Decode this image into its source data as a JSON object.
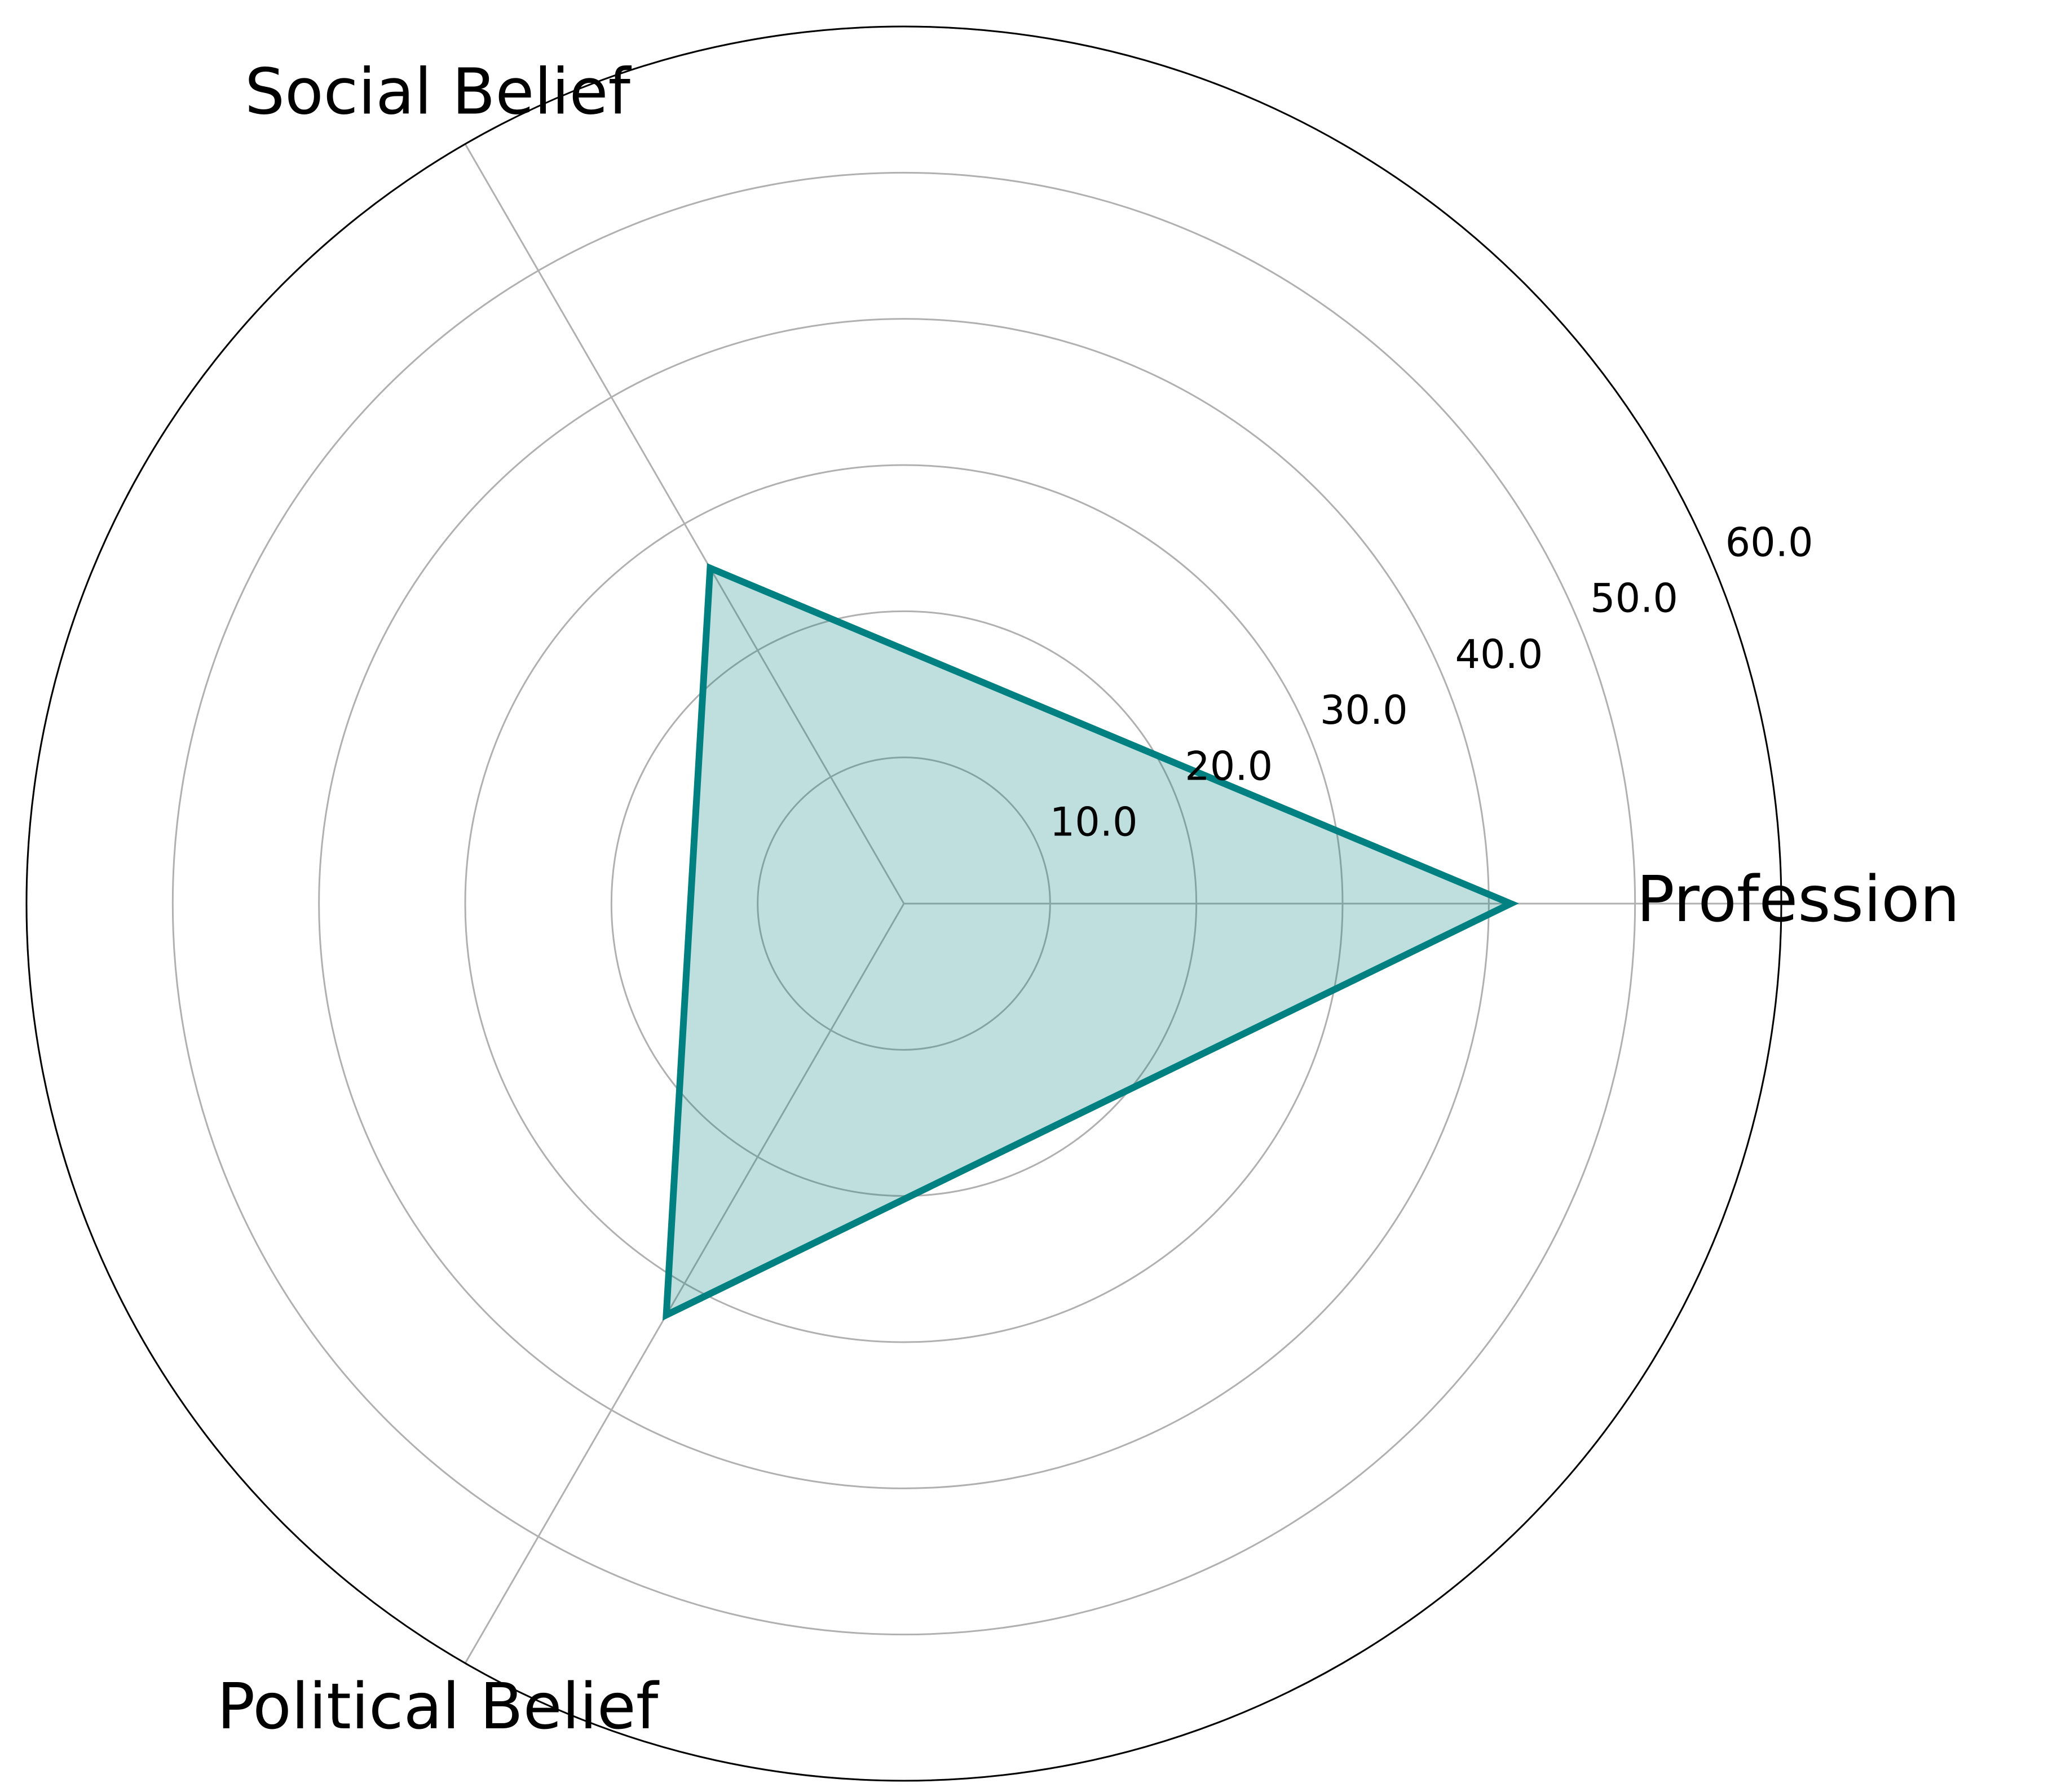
{
  "chart_data": {
    "type": "radar",
    "categories": [
      "Profession",
      "Social Belief",
      "Political Belief"
    ],
    "values": [
      41.5,
      26.5,
      32.5
    ],
    "color": "#008080",
    "ylim": [
      0,
      60
    ],
    "yticks": [
      {
        "value": 10,
        "label": "10.0"
      },
      {
        "value": 20,
        "label": "20.0"
      },
      {
        "value": 30,
        "label": "30.0"
      },
      {
        "value": 40,
        "label": "40.0"
      },
      {
        "value": 50,
        "label": "50.0"
      },
      {
        "value": 60,
        "label": "60.0"
      }
    ],
    "grid": true
  }
}
